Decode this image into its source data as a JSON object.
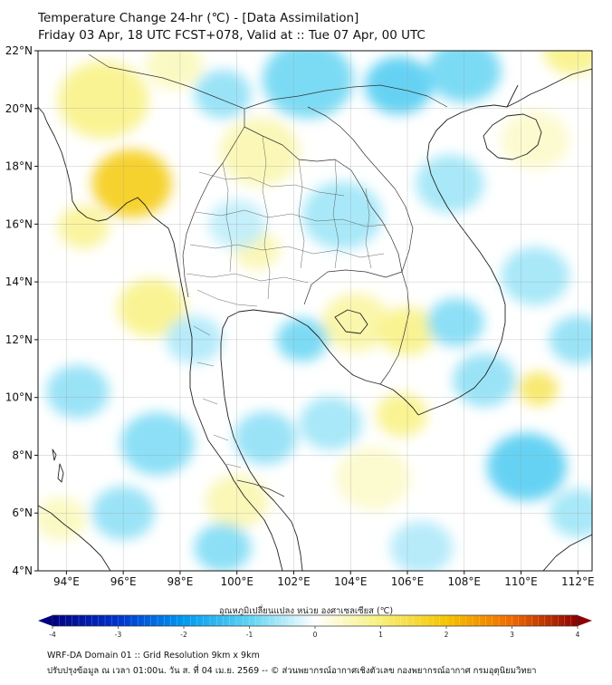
{
  "header": {
    "title": "Temperature Change 24-hr (℃) - [Data Assimilation]",
    "subtitle": "Friday 03 Apr, 18 UTC FCST+078, Valid at :: Tue 07 Apr, 00 UTC"
  },
  "map": {
    "lat_range": [
      4,
      22
    ],
    "lon_range": [
      93,
      112.5
    ],
    "lat_ticks": [
      {
        "value": 4,
        "label": "4°N"
      },
      {
        "value": 6,
        "label": "6°N"
      },
      {
        "value": 8,
        "label": "8°N"
      },
      {
        "value": 10,
        "label": "10°N"
      },
      {
        "value": 12,
        "label": "12°N"
      },
      {
        "value": 14,
        "label": "14°N"
      },
      {
        "value": 16,
        "label": "16°N"
      },
      {
        "value": 18,
        "label": "18°N"
      },
      {
        "value": 20,
        "label": "20°N"
      },
      {
        "value": 22,
        "label": "22°N"
      }
    ],
    "lon_ticks": [
      {
        "value": 94,
        "label": "94°E"
      },
      {
        "value": 96,
        "label": "96°E"
      },
      {
        "value": 98,
        "label": "98°E"
      },
      {
        "value": 100,
        "label": "100°E"
      },
      {
        "value": 102,
        "label": "102°E"
      },
      {
        "value": 104,
        "label": "104°E"
      },
      {
        "value": 106,
        "label": "106°E"
      },
      {
        "value": 108,
        "label": "108°E"
      },
      {
        "value": 110,
        "label": "110°E"
      },
      {
        "value": 112,
        "label": "112°E"
      }
    ],
    "anomalies": [
      {
        "lon": 96.3,
        "lat": 17.4,
        "value": 1.8,
        "r": 1.4
      },
      {
        "lon": 95.3,
        "lat": 20.3,
        "value": 0.9,
        "r": 1.6
      },
      {
        "lon": 94.6,
        "lat": 15.9,
        "value": 0.8,
        "r": 0.9
      },
      {
        "lon": 97.0,
        "lat": 13.1,
        "value": 0.9,
        "r": 1.2
      },
      {
        "lon": 100.8,
        "lat": 18.5,
        "value": 0.6,
        "r": 1.4
      },
      {
        "lon": 100.7,
        "lat": 15.1,
        "value": 0.6,
        "r": 0.8
      },
      {
        "lon": 104.2,
        "lat": 12.6,
        "value": 0.7,
        "r": 1.2
      },
      {
        "lon": 106.0,
        "lat": 12.3,
        "value": 0.9,
        "r": 1.0
      },
      {
        "lon": 105.8,
        "lat": 9.4,
        "value": 0.9,
        "r": 0.9
      },
      {
        "lon": 110.6,
        "lat": 10.3,
        "value": 1.2,
        "r": 0.7
      },
      {
        "lon": 110.5,
        "lat": 18.9,
        "value": 0.4,
        "r": 1.2
      },
      {
        "lon": 111.8,
        "lat": 22.0,
        "value": 0.9,
        "r": 1.0
      },
      {
        "lon": 100.0,
        "lat": 6.4,
        "value": 0.6,
        "r": 1.1
      },
      {
        "lon": 93.8,
        "lat": 5.8,
        "value": 0.5,
        "r": 0.9
      },
      {
        "lon": 104.8,
        "lat": 7.2,
        "value": 0.4,
        "r": 1.3
      },
      {
        "lon": 94.4,
        "lat": 10.2,
        "value": -0.7,
        "r": 1.1
      },
      {
        "lon": 98.5,
        "lat": 12.0,
        "value": -0.5,
        "r": 1.0
      },
      {
        "lon": 99.5,
        "lat": 20.5,
        "value": -0.7,
        "r": 1.0
      },
      {
        "lon": 102.5,
        "lat": 21.0,
        "value": -0.9,
        "r": 1.6
      },
      {
        "lon": 105.7,
        "lat": 20.8,
        "value": -1.1,
        "r": 1.2
      },
      {
        "lon": 108.0,
        "lat": 21.3,
        "value": -0.9,
        "r": 1.3
      },
      {
        "lon": 103.7,
        "lat": 16.3,
        "value": -0.6,
        "r": 1.4
      },
      {
        "lon": 102.3,
        "lat": 12.0,
        "value": -0.9,
        "r": 0.9
      },
      {
        "lon": 101.0,
        "lat": 8.6,
        "value": -0.7,
        "r": 1.1
      },
      {
        "lon": 103.3,
        "lat": 9.1,
        "value": -0.6,
        "r": 1.1
      },
      {
        "lon": 107.7,
        "lat": 12.6,
        "value": -0.8,
        "r": 1.0
      },
      {
        "lon": 108.7,
        "lat": 10.6,
        "value": -0.7,
        "r": 1.1
      },
      {
        "lon": 110.2,
        "lat": 7.6,
        "value": -1.1,
        "r": 1.4
      },
      {
        "lon": 110.5,
        "lat": 14.2,
        "value": -0.6,
        "r": 1.2
      },
      {
        "lon": 107.5,
        "lat": 17.4,
        "value": -0.6,
        "r": 1.2
      },
      {
        "lon": 97.2,
        "lat": 8.4,
        "value": -0.8,
        "r": 1.3
      },
      {
        "lon": 96.0,
        "lat": 6.0,
        "value": -0.7,
        "r": 1.1
      },
      {
        "lon": 99.5,
        "lat": 4.8,
        "value": -0.8,
        "r": 1.0
      },
      {
        "lon": 106.5,
        "lat": 4.8,
        "value": -0.5,
        "r": 1.1
      },
      {
        "lon": 112.0,
        "lat": 12.0,
        "value": -0.7,
        "r": 1.0
      },
      {
        "lon": 112.0,
        "lat": 6.0,
        "value": -0.6,
        "r": 1.0
      },
      {
        "lon": 100.0,
        "lat": 16.0,
        "value": -0.4,
        "r": 1.0
      },
      {
        "lon": 97.8,
        "lat": 21.5,
        "value": 0.5,
        "r": 1.0
      }
    ]
  },
  "colorbar": {
    "label": "อุณหภูมิเปลี่ยนแปลง หน่วย องศาเซลเซียส (℃)",
    "min": -4,
    "max": 4,
    "ticks": [
      {
        "value": -4,
        "label": "-4"
      },
      {
        "value": -3,
        "label": "-3"
      },
      {
        "value": -2,
        "label": "-2"
      },
      {
        "value": -1,
        "label": "-1"
      },
      {
        "value": 0,
        "label": "0"
      },
      {
        "value": 1,
        "label": "1"
      },
      {
        "value": 2,
        "label": "2"
      },
      {
        "value": 3,
        "label": "3"
      },
      {
        "value": 4,
        "label": "4"
      }
    ],
    "colors": [
      "#000080",
      "#0033cc",
      "#0099ee",
      "#5fd3f2",
      "#ffffff",
      "#f7f07a",
      "#f5c400",
      "#ee6a00",
      "#8b0000"
    ]
  },
  "footer": {
    "line1": "WRF-DA Domain 01 :: Grid Resolution 9km x 9km",
    "line2": "ปรับปรุงข้อมูล ณ เวลา 01:00น. วัน ส. ที่ 04 เม.ย. 2569 -- © ส่วนพยากรณ์อากาศเชิงตัวเลข กองพยากรณ์อากาศ กรมอุตุนิยมวิทยา"
  }
}
